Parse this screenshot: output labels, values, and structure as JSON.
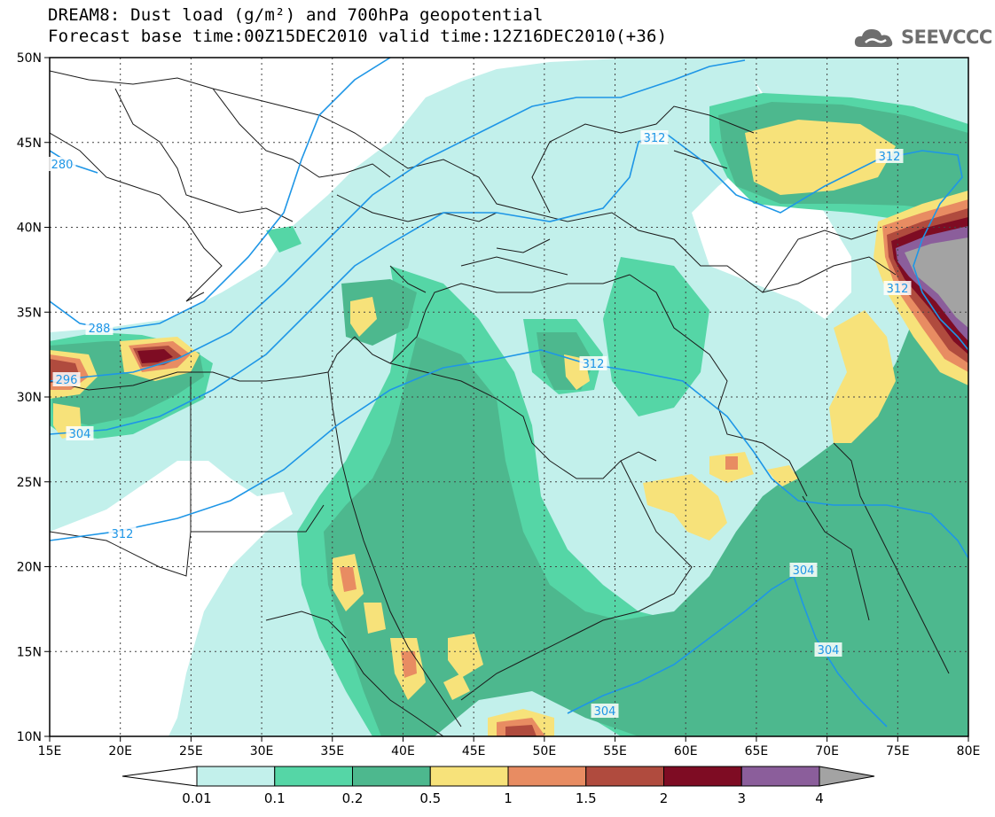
{
  "title": {
    "line1": "DREAM8: Dust load (g/m²) and 700hPa geopotential",
    "line2": "Forecast base time:00Z15DEC2010 valid time:12Z16DEC2010(+36)"
  },
  "logo": {
    "text": "SEEVCCC",
    "icon": "cloud-icon"
  },
  "map": {
    "lon_labels": [
      "15E",
      "20E",
      "25E",
      "30E",
      "35E",
      "40E",
      "45E",
      "50E",
      "55E",
      "60E",
      "65E",
      "70E",
      "75E",
      "80E"
    ],
    "lat_labels": [
      "50N",
      "45N",
      "40N",
      "35N",
      "30N",
      "25N",
      "20N",
      "15N",
      "10N"
    ],
    "contour_labels": [
      "280",
      "288",
      "296",
      "304",
      "312",
      "312",
      "312",
      "312",
      "312",
      "304",
      "304",
      "304"
    ]
  },
  "legend": {
    "ticks": [
      "0.01",
      "0.1",
      "0.2",
      "0.5",
      "1",
      "1.5",
      "2",
      "3",
      "4"
    ],
    "colors": [
      "#ffffff",
      "#c2f0eb",
      "#55d6a6",
      "#4db88e",
      "#f7e27a",
      "#e88c62",
      "#b04b3e",
      "#7e0c23",
      "#8b5e9b",
      "#a3a3a3"
    ]
  },
  "colors": {
    "contour": "#1e96e6",
    "border": "#1a1a1a"
  }
}
